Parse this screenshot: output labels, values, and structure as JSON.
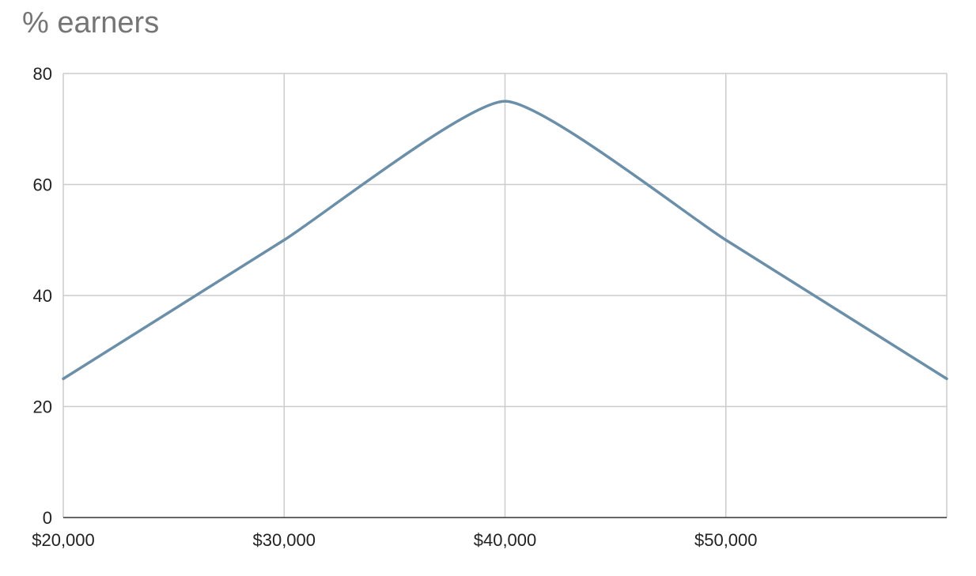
{
  "chart_data": {
    "type": "line",
    "title": "% earners",
    "xlabel": "",
    "ylabel": "",
    "x": [
      20000,
      30000,
      40000,
      50000,
      60000
    ],
    "series": [
      {
        "values": [
          25,
          50,
          75,
          50,
          25
        ],
        "color": "#6b8fa8",
        "smooth": true
      }
    ],
    "xlim": [
      20000,
      60000
    ],
    "ylim": [
      0,
      80
    ],
    "x_ticks": [
      20000,
      30000,
      40000,
      50000
    ],
    "x_tick_labels": [
      "$20,000",
      "$30,000",
      "$40,000",
      "$50,000"
    ],
    "y_ticks": [
      0,
      20,
      40,
      60,
      80
    ],
    "y_tick_labels": [
      "0",
      "20",
      "40",
      "60",
      "80"
    ],
    "grid": true,
    "legend": "none",
    "colors": {
      "grid": "#cccccc",
      "axis": "#333333",
      "title": "#757575",
      "tick_text": "#222222"
    }
  }
}
